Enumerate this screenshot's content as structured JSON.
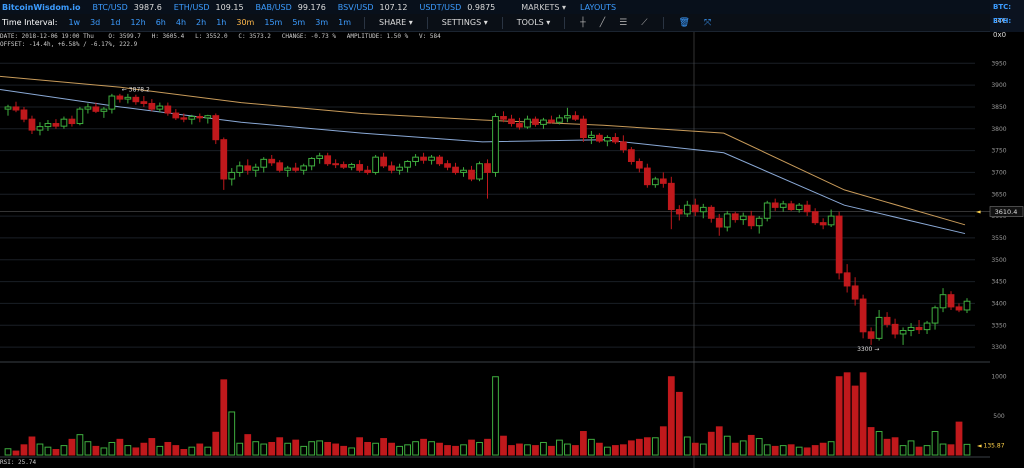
{
  "topbar": {
    "brand": "BitcoinWisdom.io",
    "tickers": [
      {
        "pair": "BTC/USD",
        "price": "3987.6"
      },
      {
        "pair": "ETH/USD",
        "price": "109.15"
      },
      {
        "pair": "BAB/USD",
        "price": "99.176"
      },
      {
        "pair": "BSV/USD",
        "price": "107.12"
      },
      {
        "pair": "USDT/USD",
        "price": "0.9875"
      }
    ],
    "markets": "MARKETS ▾",
    "layouts": "LAYOUTS",
    "right_tickers": [
      {
        "pair": "BTC:",
        "price": "34€"
      },
      {
        "pair": "ETH:",
        "price": "0x0"
      }
    ]
  },
  "toolbar": {
    "label": "Time Interval:",
    "intervals": [
      "1w",
      "3d",
      "1d",
      "12h",
      "6h",
      "4h",
      "2h",
      "1h",
      "30m",
      "15m",
      "5m",
      "3m",
      "1m"
    ],
    "active_interval": "30m",
    "share": "SHARE ▾",
    "settings": "SETTINGS ▾",
    "tools": "TOOLS ▾",
    "tool_icons": [
      "crosshair-icon",
      "line-draw-icon",
      "fib-lines-icon",
      "ray-icon",
      "trash-icon",
      "fullscreen-icon"
    ]
  },
  "info": {
    "line1": "DATE: 2018-12-06 19:00 Thu    O: 3599.7   H: 3605.4   L: 3552.0   C: 3573.2   CHANGE: -0.73 %   AMPLITUDE: 1.50 %   V: 584",
    "line2": "OFFSET: -14.4h, +6.58% / -6.17%, 222.9"
  },
  "rsi_label": "RSI: 25.74",
  "colors": {
    "up": "#3fae3f",
    "down": "#c0191c",
    "ma_long": "#c89b5a",
    "ma_short": "#8aa9d6",
    "grid": "#1a1f26"
  },
  "chart_data": {
    "type": "candlestick",
    "price_axis": {
      "ticks": [
        3950,
        3900,
        3850,
        3800,
        3750,
        3700,
        3650,
        3600,
        3550,
        3500,
        3450,
        3400,
        3350,
        3300
      ],
      "range": [
        3275,
        3985
      ]
    },
    "volume_axis": {
      "ticks": [
        1000,
        500
      ],
      "range": [
        0,
        1150
      ]
    },
    "annotations": [
      {
        "label": "← 3878.2",
        "price": 3878.2,
        "candle": 14
      },
      {
        "label": "3300 →",
        "price": 3300,
        "candle": 106
      }
    ],
    "current_price_label": "3610.4",
    "current_volume_label": "135.87",
    "candles": [
      {
        "o": 3845,
        "h": 3855,
        "l": 3830,
        "c": 3850,
        "v": 80
      },
      {
        "o": 3850,
        "h": 3862,
        "l": 3838,
        "c": 3843,
        "v": 50
      },
      {
        "o": 3843,
        "h": 3850,
        "l": 3815,
        "c": 3822,
        "v": 130
      },
      {
        "o": 3822,
        "h": 3830,
        "l": 3788,
        "c": 3797,
        "v": 230
      },
      {
        "o": 3797,
        "h": 3815,
        "l": 3785,
        "c": 3805,
        "v": 140
      },
      {
        "o": 3805,
        "h": 3820,
        "l": 3795,
        "c": 3812,
        "v": 100
      },
      {
        "o": 3812,
        "h": 3822,
        "l": 3800,
        "c": 3806,
        "v": 70
      },
      {
        "o": 3806,
        "h": 3828,
        "l": 3800,
        "c": 3822,
        "v": 120
      },
      {
        "o": 3822,
        "h": 3830,
        "l": 3805,
        "c": 3812,
        "v": 200
      },
      {
        "o": 3812,
        "h": 3850,
        "l": 3808,
        "c": 3845,
        "v": 260
      },
      {
        "o": 3845,
        "h": 3858,
        "l": 3835,
        "c": 3850,
        "v": 170
      },
      {
        "o": 3850,
        "h": 3860,
        "l": 3836,
        "c": 3840,
        "v": 110
      },
      {
        "o": 3840,
        "h": 3850,
        "l": 3825,
        "c": 3845,
        "v": 90
      },
      {
        "o": 3845,
        "h": 3880,
        "l": 3835,
        "c": 3875,
        "v": 160
      },
      {
        "o": 3875,
        "h": 3880,
        "l": 3860,
        "c": 3868,
        "v": 200
      },
      {
        "o": 3868,
        "h": 3880,
        "l": 3858,
        "c": 3872,
        "v": 120
      },
      {
        "o": 3872,
        "h": 3878,
        "l": 3855,
        "c": 3862,
        "v": 90
      },
      {
        "o": 3862,
        "h": 3875,
        "l": 3850,
        "c": 3858,
        "v": 150
      },
      {
        "o": 3858,
        "h": 3868,
        "l": 3840,
        "c": 3845,
        "v": 210
      },
      {
        "o": 3845,
        "h": 3860,
        "l": 3838,
        "c": 3852,
        "v": 110
      },
      {
        "o": 3852,
        "h": 3860,
        "l": 3830,
        "c": 3836,
        "v": 160
      },
      {
        "o": 3836,
        "h": 3845,
        "l": 3820,
        "c": 3825,
        "v": 120
      },
      {
        "o": 3825,
        "h": 3835,
        "l": 3815,
        "c": 3822,
        "v": 70
      },
      {
        "o": 3822,
        "h": 3832,
        "l": 3810,
        "c": 3828,
        "v": 100
      },
      {
        "o": 3828,
        "h": 3835,
        "l": 3815,
        "c": 3825,
        "v": 140
      },
      {
        "o": 3825,
        "h": 3832,
        "l": 3812,
        "c": 3830,
        "v": 100
      },
      {
        "o": 3830,
        "h": 3835,
        "l": 3765,
        "c": 3775,
        "v": 290
      },
      {
        "o": 3775,
        "h": 3780,
        "l": 3660,
        "c": 3685,
        "v": 960
      },
      {
        "o": 3685,
        "h": 3710,
        "l": 3670,
        "c": 3700,
        "v": 550
      },
      {
        "o": 3700,
        "h": 3725,
        "l": 3690,
        "c": 3715,
        "v": 150
      },
      {
        "o": 3715,
        "h": 3730,
        "l": 3695,
        "c": 3705,
        "v": 260
      },
      {
        "o": 3705,
        "h": 3720,
        "l": 3690,
        "c": 3712,
        "v": 170
      },
      {
        "o": 3712,
        "h": 3735,
        "l": 3700,
        "c": 3730,
        "v": 140
      },
      {
        "o": 3730,
        "h": 3740,
        "l": 3715,
        "c": 3722,
        "v": 160
      },
      {
        "o": 3722,
        "h": 3728,
        "l": 3700,
        "c": 3705,
        "v": 220
      },
      {
        "o": 3705,
        "h": 3715,
        "l": 3690,
        "c": 3710,
        "v": 150
      },
      {
        "o": 3710,
        "h": 3722,
        "l": 3700,
        "c": 3705,
        "v": 190
      },
      {
        "o": 3705,
        "h": 3720,
        "l": 3695,
        "c": 3715,
        "v": 110
      },
      {
        "o": 3715,
        "h": 3735,
        "l": 3705,
        "c": 3732,
        "v": 170
      },
      {
        "o": 3732,
        "h": 3745,
        "l": 3720,
        "c": 3738,
        "v": 180
      },
      {
        "o": 3738,
        "h": 3745,
        "l": 3715,
        "c": 3720,
        "v": 160
      },
      {
        "o": 3720,
        "h": 3730,
        "l": 3710,
        "c": 3718,
        "v": 140
      },
      {
        "o": 3718,
        "h": 3725,
        "l": 3708,
        "c": 3712,
        "v": 110
      },
      {
        "o": 3712,
        "h": 3722,
        "l": 3705,
        "c": 3718,
        "v": 90
      },
      {
        "o": 3718,
        "h": 3728,
        "l": 3700,
        "c": 3705,
        "v": 220
      },
      {
        "o": 3705,
        "h": 3715,
        "l": 3695,
        "c": 3700,
        "v": 160
      },
      {
        "o": 3700,
        "h": 3740,
        "l": 3695,
        "c": 3735,
        "v": 150
      },
      {
        "o": 3735,
        "h": 3745,
        "l": 3710,
        "c": 3715,
        "v": 210
      },
      {
        "o": 3715,
        "h": 3725,
        "l": 3698,
        "c": 3705,
        "v": 150
      },
      {
        "o": 3705,
        "h": 3720,
        "l": 3695,
        "c": 3712,
        "v": 110
      },
      {
        "o": 3712,
        "h": 3728,
        "l": 3700,
        "c": 3725,
        "v": 130
      },
      {
        "o": 3725,
        "h": 3742,
        "l": 3715,
        "c": 3735,
        "v": 170
      },
      {
        "o": 3735,
        "h": 3745,
        "l": 3720,
        "c": 3728,
        "v": 200
      },
      {
        "o": 3728,
        "h": 3740,
        "l": 3718,
        "c": 3735,
        "v": 170
      },
      {
        "o": 3735,
        "h": 3740,
        "l": 3715,
        "c": 3720,
        "v": 150
      },
      {
        "o": 3720,
        "h": 3728,
        "l": 3705,
        "c": 3712,
        "v": 120
      },
      {
        "o": 3712,
        "h": 3722,
        "l": 3695,
        "c": 3700,
        "v": 110
      },
      {
        "o": 3700,
        "h": 3712,
        "l": 3690,
        "c": 3705,
        "v": 130
      },
      {
        "o": 3705,
        "h": 3715,
        "l": 3680,
        "c": 3685,
        "v": 190
      },
      {
        "o": 3685,
        "h": 3725,
        "l": 3680,
        "c": 3720,
        "v": 160
      },
      {
        "o": 3720,
        "h": 3730,
        "l": 3640,
        "c": 3700,
        "v": 200
      },
      {
        "o": 3700,
        "h": 3835,
        "l": 3690,
        "c": 3828,
        "v": 1000
      },
      {
        "o": 3828,
        "h": 3840,
        "l": 3815,
        "c": 3822,
        "v": 240
      },
      {
        "o": 3822,
        "h": 3832,
        "l": 3805,
        "c": 3812,
        "v": 120
      },
      {
        "o": 3812,
        "h": 3825,
        "l": 3798,
        "c": 3804,
        "v": 140
      },
      {
        "o": 3804,
        "h": 3830,
        "l": 3800,
        "c": 3822,
        "v": 130
      },
      {
        "o": 3822,
        "h": 3828,
        "l": 3805,
        "c": 3810,
        "v": 120
      },
      {
        "o": 3810,
        "h": 3825,
        "l": 3800,
        "c": 3820,
        "v": 160
      },
      {
        "o": 3820,
        "h": 3830,
        "l": 3812,
        "c": 3815,
        "v": 110
      },
      {
        "o": 3815,
        "h": 3832,
        "l": 3810,
        "c": 3825,
        "v": 190
      },
      {
        "o": 3825,
        "h": 3848,
        "l": 3815,
        "c": 3830,
        "v": 140
      },
      {
        "o": 3830,
        "h": 3840,
        "l": 3818,
        "c": 3822,
        "v": 120
      },
      {
        "o": 3822,
        "h": 3830,
        "l": 3770,
        "c": 3780,
        "v": 300
      },
      {
        "o": 3780,
        "h": 3795,
        "l": 3765,
        "c": 3785,
        "v": 200
      },
      {
        "o": 3785,
        "h": 3790,
        "l": 3768,
        "c": 3772,
        "v": 150
      },
      {
        "o": 3772,
        "h": 3785,
        "l": 3760,
        "c": 3780,
        "v": 100
      },
      {
        "o": 3780,
        "h": 3790,
        "l": 3765,
        "c": 3770,
        "v": 120
      },
      {
        "o": 3770,
        "h": 3785,
        "l": 3745,
        "c": 3752,
        "v": 130
      },
      {
        "o": 3752,
        "h": 3758,
        "l": 3718,
        "c": 3725,
        "v": 180
      },
      {
        "o": 3725,
        "h": 3732,
        "l": 3700,
        "c": 3710,
        "v": 200
      },
      {
        "o": 3710,
        "h": 3720,
        "l": 3665,
        "c": 3672,
        "v": 220
      },
      {
        "o": 3672,
        "h": 3690,
        "l": 3665,
        "c": 3685,
        "v": 220
      },
      {
        "o": 3685,
        "h": 3700,
        "l": 3665,
        "c": 3675,
        "v": 360
      },
      {
        "o": 3675,
        "h": 3690,
        "l": 3570,
        "c": 3615,
        "v": 1000
      },
      {
        "o": 3615,
        "h": 3625,
        "l": 3590,
        "c": 3605,
        "v": 800
      },
      {
        "o": 3605,
        "h": 3635,
        "l": 3598,
        "c": 3625,
        "v": 230
      },
      {
        "o": 3625,
        "h": 3640,
        "l": 3600,
        "c": 3610,
        "v": 150
      },
      {
        "o": 3610,
        "h": 3628,
        "l": 3595,
        "c": 3620,
        "v": 140
      },
      {
        "o": 3620,
        "h": 3625,
        "l": 3585,
        "c": 3595,
        "v": 290
      },
      {
        "o": 3595,
        "h": 3605,
        "l": 3555,
        "c": 3575,
        "v": 360
      },
      {
        "o": 3575,
        "h": 3612,
        "l": 3565,
        "c": 3605,
        "v": 240
      },
      {
        "o": 3605,
        "h": 3610,
        "l": 3585,
        "c": 3592,
        "v": 150
      },
      {
        "o": 3592,
        "h": 3608,
        "l": 3580,
        "c": 3600,
        "v": 180
      },
      {
        "o": 3600,
        "h": 3612,
        "l": 3570,
        "c": 3578,
        "v": 250
      },
      {
        "o": 3578,
        "h": 3600,
        "l": 3560,
        "c": 3595,
        "v": 210
      },
      {
        "o": 3595,
        "h": 3635,
        "l": 3588,
        "c": 3630,
        "v": 130
      },
      {
        "o": 3630,
        "h": 3640,
        "l": 3612,
        "c": 3620,
        "v": 110
      },
      {
        "o": 3620,
        "h": 3635,
        "l": 3610,
        "c": 3628,
        "v": 120
      },
      {
        "o": 3628,
        "h": 3635,
        "l": 3612,
        "c": 3615,
        "v": 130
      },
      {
        "o": 3615,
        "h": 3630,
        "l": 3608,
        "c": 3625,
        "v": 100
      },
      {
        "o": 3625,
        "h": 3635,
        "l": 3600,
        "c": 3610,
        "v": 90
      },
      {
        "o": 3610,
        "h": 3618,
        "l": 3580,
        "c": 3585,
        "v": 120
      },
      {
        "o": 3585,
        "h": 3595,
        "l": 3570,
        "c": 3580,
        "v": 150
      },
      {
        "o": 3580,
        "h": 3615,
        "l": 3575,
        "c": 3600,
        "v": 170
      },
      {
        "o": 3600,
        "h": 3610,
        "l": 3455,
        "c": 3470,
        "v": 1000
      },
      {
        "o": 3470,
        "h": 3490,
        "l": 3425,
        "c": 3440,
        "v": 1050
      },
      {
        "o": 3440,
        "h": 3460,
        "l": 3395,
        "c": 3410,
        "v": 880
      },
      {
        "o": 3410,
        "h": 3420,
        "l": 3320,
        "c": 3335,
        "v": 1050
      },
      {
        "o": 3335,
        "h": 3345,
        "l": 3305,
        "c": 3320,
        "v": 350
      },
      {
        "o": 3320,
        "h": 3385,
        "l": 3315,
        "c": 3368,
        "v": 300
      },
      {
        "o": 3368,
        "h": 3380,
        "l": 3345,
        "c": 3352,
        "v": 200
      },
      {
        "o": 3352,
        "h": 3365,
        "l": 3320,
        "c": 3330,
        "v": 220
      },
      {
        "o": 3330,
        "h": 3345,
        "l": 3305,
        "c": 3338,
        "v": 120
      },
      {
        "o": 3338,
        "h": 3355,
        "l": 3325,
        "c": 3345,
        "v": 180
      },
      {
        "o": 3345,
        "h": 3362,
        "l": 3330,
        "c": 3340,
        "v": 100
      },
      {
        "o": 3340,
        "h": 3360,
        "l": 3330,
        "c": 3355,
        "v": 120
      },
      {
        "o": 3355,
        "h": 3395,
        "l": 3340,
        "c": 3390,
        "v": 300
      },
      {
        "o": 3390,
        "h": 3435,
        "l": 3380,
        "c": 3420,
        "v": 140
      },
      {
        "o": 3420,
        "h": 3428,
        "l": 3385,
        "c": 3392,
        "v": 130
      },
      {
        "o": 3392,
        "h": 3400,
        "l": 3380,
        "c": 3385,
        "v": 420
      },
      {
        "o": 3385,
        "h": 3412,
        "l": 3378,
        "c": 3405,
        "v": 136
      }
    ],
    "ma_long": [
      3920,
      3895,
      3860,
      3835,
      3820,
      3808,
      3790,
      3660,
      3580
    ],
    "ma_short": [
      3890,
      3850,
      3815,
      3790,
      3770,
      3775,
      3745,
      3625,
      3560
    ],
    "rsi": 25.74
  }
}
